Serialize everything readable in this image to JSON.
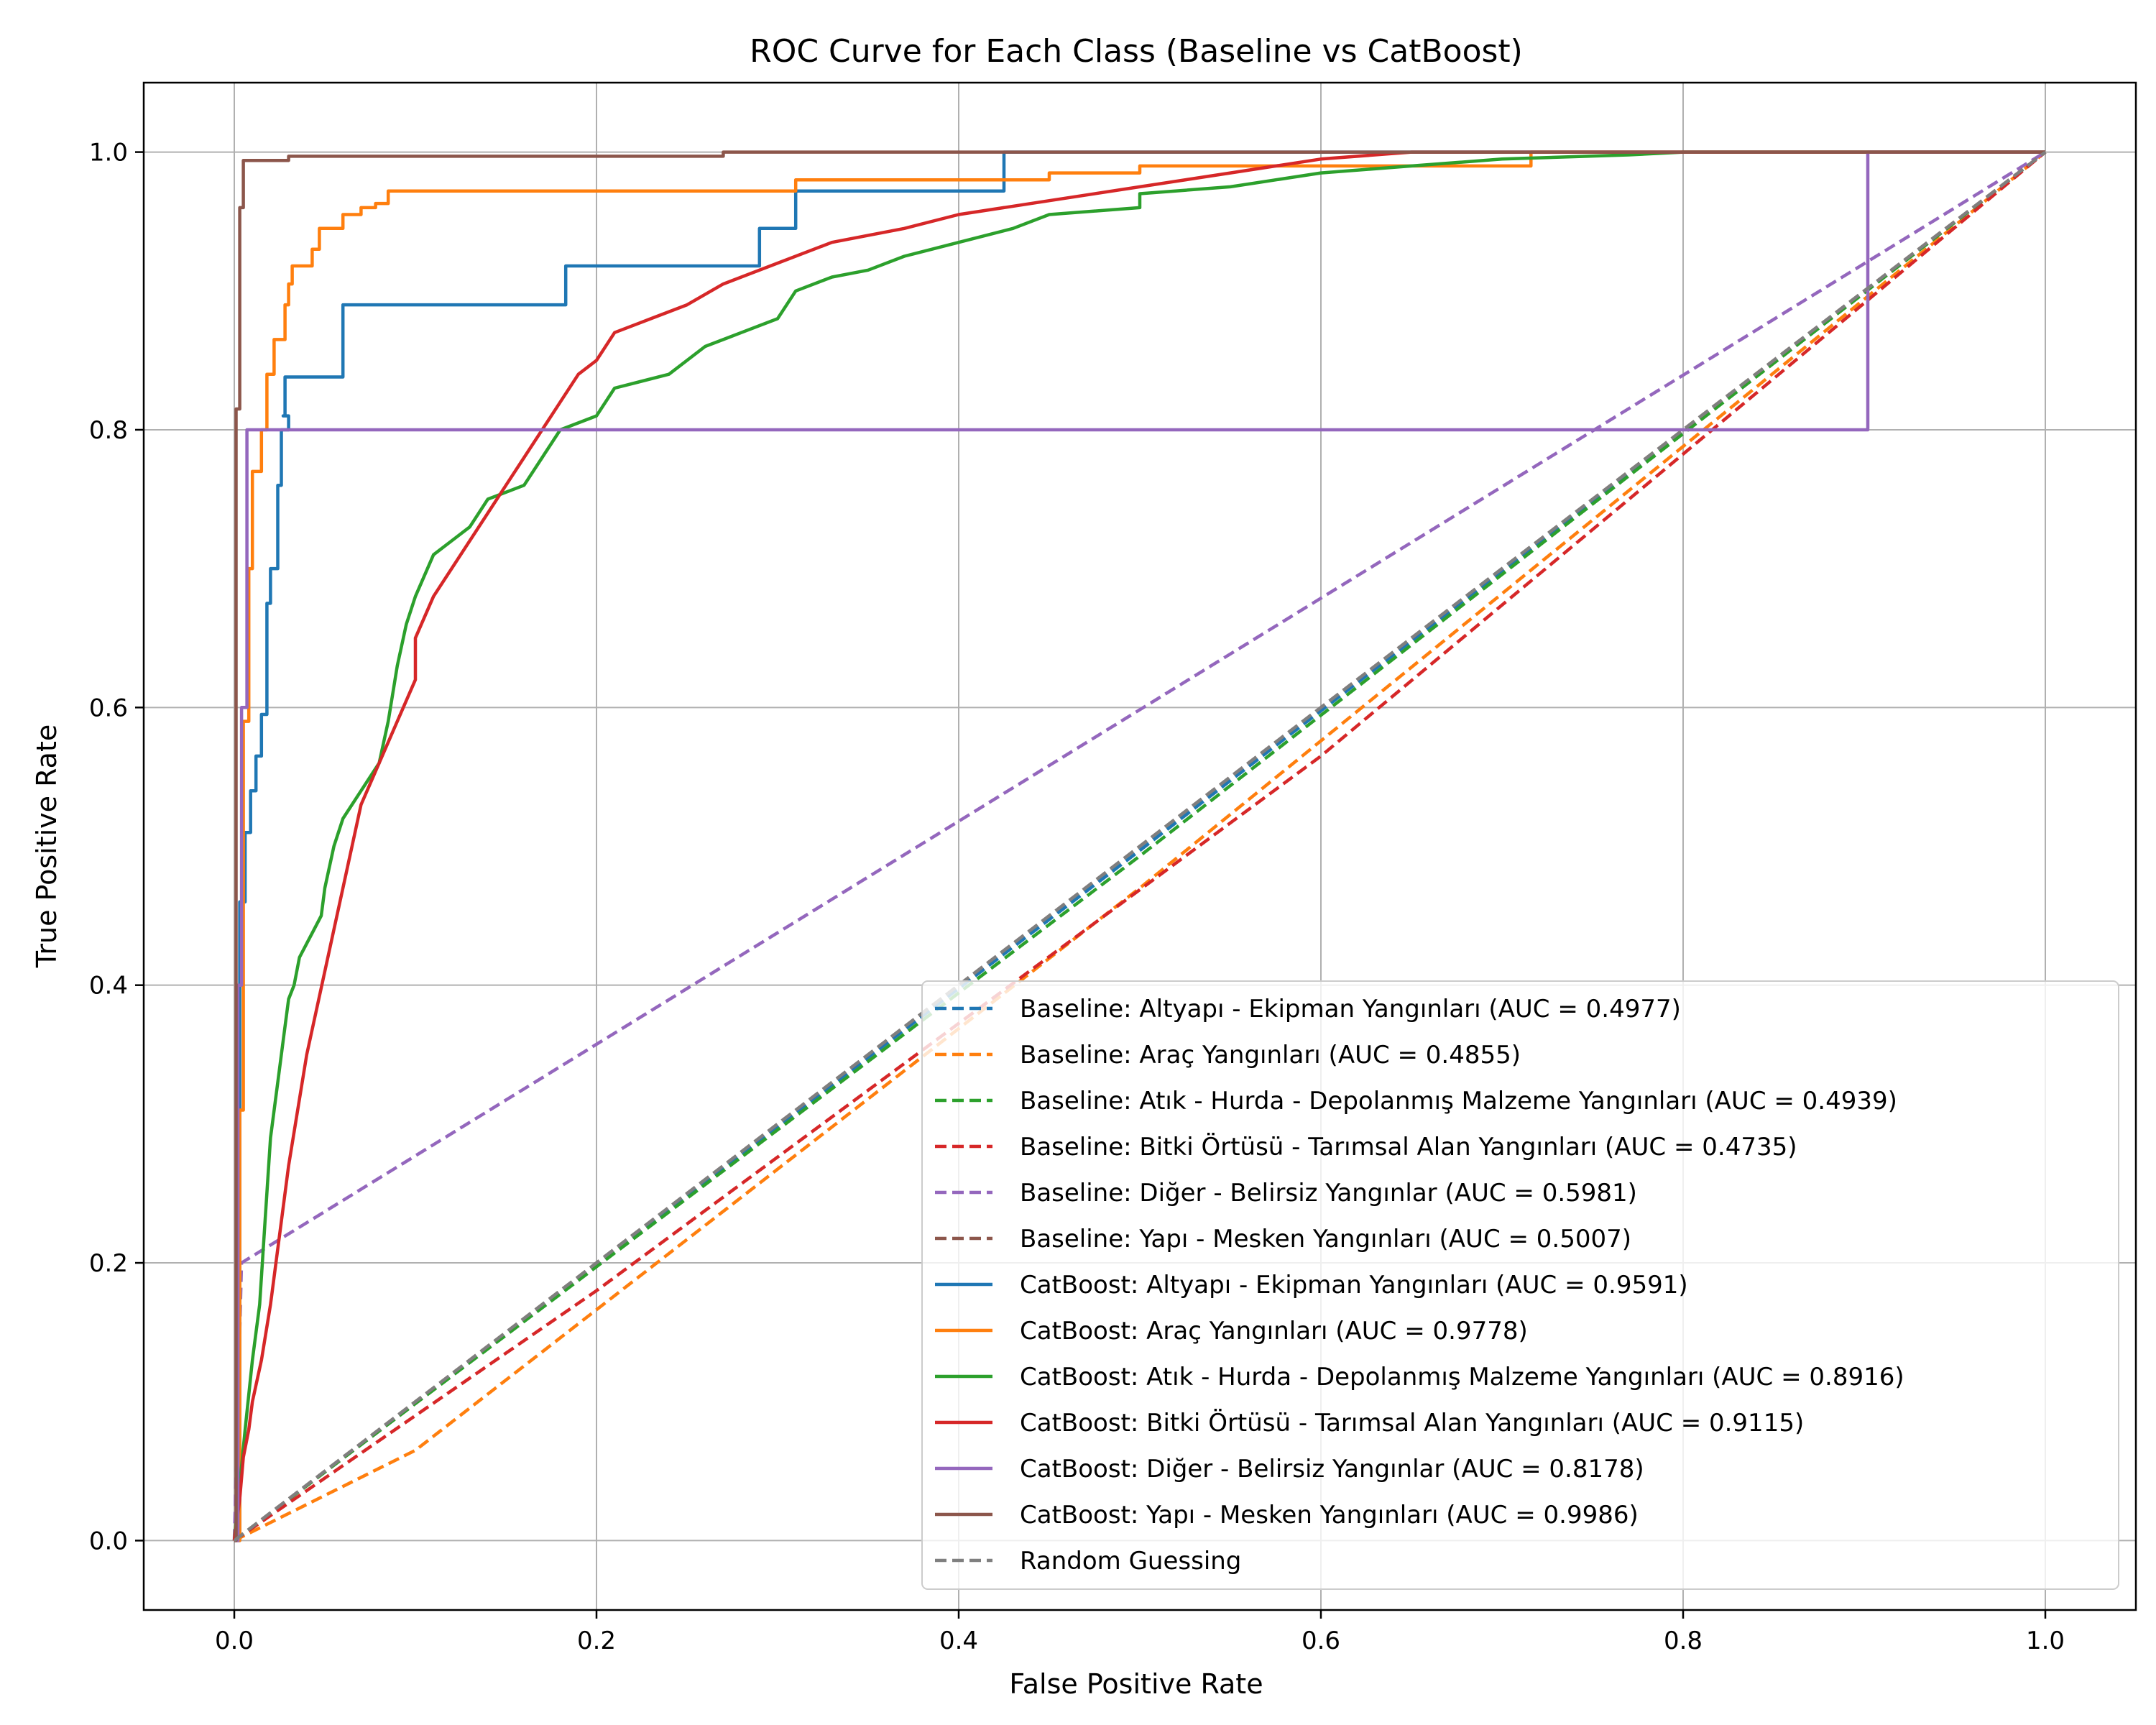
{
  "chart_data": {
    "type": "line",
    "title": "ROC Curve for Each Class (Baseline vs CatBoost)",
    "xlabel": "False Positive Rate",
    "ylabel": "True Positive Rate",
    "xlim": [
      -0.05,
      1.05
    ],
    "ylim": [
      -0.05,
      1.05
    ],
    "xticks": [
      "0.0",
      "0.2",
      "0.4",
      "0.6",
      "0.8",
      "1.0"
    ],
    "yticks": [
      "0.0",
      "0.2",
      "0.4",
      "0.6",
      "0.8",
      "1.0"
    ],
    "grid": true,
    "legend_position": "lower-right",
    "series": [
      {
        "name": "Baseline: Altyapı - Ekipman Yangınları (AUC = 0.4977)",
        "color": "#1f77b4",
        "style": "dashed",
        "points": [
          [
            0,
            0
          ],
          [
            0.5,
            0.497
          ],
          [
            1,
            1
          ]
        ]
      },
      {
        "name": "Baseline: Araç Yangınları (AUC = 0.4855)",
        "color": "#ff7f0e",
        "style": "dashed",
        "points": [
          [
            0,
            0
          ],
          [
            0.1,
            0.065
          ],
          [
            0.5,
            0.47
          ],
          [
            1,
            1
          ]
        ]
      },
      {
        "name": "Baseline: Atık - Hurda - Depolanmış Malzeme Yangınları (AUC = 0.4939)",
        "color": "#2ca02c",
        "style": "dashed",
        "points": [
          [
            0,
            0
          ],
          [
            0.5,
            0.493
          ],
          [
            1,
            1
          ]
        ]
      },
      {
        "name": "Baseline: Bitki Örtüsü - Tarımsal Alan Yangınları (AUC = 0.4735)",
        "color": "#d62728",
        "style": "dashed",
        "points": [
          [
            0,
            0
          ],
          [
            0.2,
            0.18
          ],
          [
            0.6,
            0.565
          ],
          [
            1,
            1
          ]
        ]
      },
      {
        "name": "Baseline: Diğer - Belirsiz Yangınlar (AUC = 0.5981)",
        "color": "#9467bd",
        "style": "dashed",
        "points": [
          [
            0,
            0
          ],
          [
            0.004,
            0.2
          ],
          [
            1,
            1
          ]
        ]
      },
      {
        "name": "Baseline: Yapı - Mesken Yangınları (AUC = 0.5007)",
        "color": "#8c564b",
        "style": "dashed",
        "points": [
          [
            0,
            0
          ],
          [
            1,
            1
          ]
        ]
      },
      {
        "name": "CatBoost: Altyapı - Ekipman Yangınları (AUC = 0.9591)",
        "color": "#1f77b4",
        "style": "solid",
        "points": [
          [
            0,
            0
          ],
          [
            0.003,
            0
          ],
          [
            0.003,
            0.46
          ],
          [
            0.006,
            0.46
          ],
          [
            0.006,
            0.51
          ],
          [
            0.009,
            0.51
          ],
          [
            0.009,
            0.54
          ],
          [
            0.012,
            0.54
          ],
          [
            0.012,
            0.565
          ],
          [
            0.015,
            0.565
          ],
          [
            0.015,
            0.595
          ],
          [
            0.018,
            0.595
          ],
          [
            0.018,
            0.675
          ],
          [
            0.02,
            0.675
          ],
          [
            0.02,
            0.7
          ],
          [
            0.024,
            0.7
          ],
          [
            0.024,
            0.76
          ],
          [
            0.026,
            0.76
          ],
          [
            0.026,
            0.8
          ],
          [
            0.03,
            0.8
          ],
          [
            0.03,
            0.81
          ],
          [
            0.027,
            0.81
          ],
          [
            0.027,
            0.81
          ],
          [
            0.028,
            0.81
          ],
          [
            0.028,
            0.838
          ],
          [
            0.06,
            0.838
          ],
          [
            0.06,
            0.89
          ],
          [
            0.183,
            0.89
          ],
          [
            0.183,
            0.918
          ],
          [
            0.29,
            0.918
          ],
          [
            0.29,
            0.945
          ],
          [
            0.31,
            0.945
          ],
          [
            0.31,
            0.972
          ],
          [
            0.425,
            0.972
          ],
          [
            0.425,
            1.0
          ],
          [
            1,
            1
          ]
        ]
      },
      {
        "name": "CatBoost: Araç Yangınları (AUC = 0.9778)",
        "color": "#ff7f0e",
        "style": "solid",
        "points": [
          [
            0,
            0
          ],
          [
            0.003,
            0
          ],
          [
            0.003,
            0.31
          ],
          [
            0.005,
            0.31
          ],
          [
            0.005,
            0.59
          ],
          [
            0.008,
            0.59
          ],
          [
            0.008,
            0.7
          ],
          [
            0.01,
            0.7
          ],
          [
            0.01,
            0.77
          ],
          [
            0.015,
            0.77
          ],
          [
            0.015,
            0.8
          ],
          [
            0.018,
            0.8
          ],
          [
            0.018,
            0.84
          ],
          [
            0.022,
            0.84
          ],
          [
            0.022,
            0.865
          ],
          [
            0.028,
            0.865
          ],
          [
            0.028,
            0.89
          ],
          [
            0.03,
            0.89
          ],
          [
            0.03,
            0.905
          ],
          [
            0.032,
            0.905
          ],
          [
            0.032,
            0.918
          ],
          [
            0.043,
            0.918
          ],
          [
            0.043,
            0.93
          ],
          [
            0.047,
            0.93
          ],
          [
            0.047,
            0.945
          ],
          [
            0.06,
            0.945
          ],
          [
            0.06,
            0.955
          ],
          [
            0.07,
            0.955
          ],
          [
            0.07,
            0.96
          ],
          [
            0.078,
            0.96
          ],
          [
            0.078,
            0.963
          ],
          [
            0.085,
            0.963
          ],
          [
            0.085,
            0.972
          ],
          [
            0.31,
            0.972
          ],
          [
            0.31,
            0.98
          ],
          [
            0.45,
            0.98
          ],
          [
            0.45,
            0.985
          ],
          [
            0.5,
            0.985
          ],
          [
            0.5,
            0.99
          ],
          [
            0.716,
            0.99
          ],
          [
            0.716,
            1.0
          ],
          [
            1,
            1
          ]
        ]
      },
      {
        "name": "CatBoost: Atık - Hurda - Depolanmış Malzeme Yangınları (AUC = 0.8916)",
        "color": "#2ca02c",
        "style": "solid",
        "points": [
          [
            0,
            0
          ],
          [
            0.003,
            0.04
          ],
          [
            0.006,
            0.08
          ],
          [
            0.01,
            0.13
          ],
          [
            0.014,
            0.17
          ],
          [
            0.017,
            0.23
          ],
          [
            0.02,
            0.29
          ],
          [
            0.024,
            0.33
          ],
          [
            0.027,
            0.36
          ],
          [
            0.03,
            0.39
          ],
          [
            0.033,
            0.4
          ],
          [
            0.036,
            0.42
          ],
          [
            0.04,
            0.43
          ],
          [
            0.044,
            0.44
          ],
          [
            0.048,
            0.45
          ],
          [
            0.05,
            0.47
          ],
          [
            0.055,
            0.5
          ],
          [
            0.06,
            0.52
          ],
          [
            0.07,
            0.54
          ],
          [
            0.08,
            0.56
          ],
          [
            0.085,
            0.59
          ],
          [
            0.09,
            0.63
          ],
          [
            0.095,
            0.66
          ],
          [
            0.1,
            0.68
          ],
          [
            0.11,
            0.71
          ],
          [
            0.12,
            0.72
          ],
          [
            0.13,
            0.73
          ],
          [
            0.14,
            0.75
          ],
          [
            0.16,
            0.76
          ],
          [
            0.17,
            0.78
          ],
          [
            0.18,
            0.8
          ],
          [
            0.2,
            0.81
          ],
          [
            0.21,
            0.83
          ],
          [
            0.24,
            0.84
          ],
          [
            0.26,
            0.86
          ],
          [
            0.28,
            0.87
          ],
          [
            0.3,
            0.88
          ],
          [
            0.31,
            0.9
          ],
          [
            0.33,
            0.91
          ],
          [
            0.35,
            0.915
          ],
          [
            0.37,
            0.925
          ],
          [
            0.4,
            0.935
          ],
          [
            0.43,
            0.945
          ],
          [
            0.45,
            0.955
          ],
          [
            0.5,
            0.96
          ],
          [
            0.5,
            0.97
          ],
          [
            0.55,
            0.975
          ],
          [
            0.6,
            0.985
          ],
          [
            0.65,
            0.99
          ],
          [
            0.7,
            0.995
          ],
          [
            0.77,
            0.998
          ],
          [
            0.8,
            1.0
          ],
          [
            1,
            1
          ]
        ]
      },
      {
        "name": "CatBoost: Bitki Örtüsü - Tarımsal Alan Yangınları (AUC = 0.9115)",
        "color": "#d62728",
        "style": "solid",
        "points": [
          [
            0,
            0
          ],
          [
            0.003,
            0.03
          ],
          [
            0.005,
            0.06
          ],
          [
            0.008,
            0.08
          ],
          [
            0.01,
            0.1
          ],
          [
            0.015,
            0.13
          ],
          [
            0.02,
            0.17
          ],
          [
            0.025,
            0.22
          ],
          [
            0.03,
            0.27
          ],
          [
            0.035,
            0.31
          ],
          [
            0.04,
            0.35
          ],
          [
            0.045,
            0.38
          ],
          [
            0.05,
            0.41
          ],
          [
            0.055,
            0.44
          ],
          [
            0.06,
            0.47
          ],
          [
            0.065,
            0.5
          ],
          [
            0.07,
            0.53
          ],
          [
            0.08,
            0.56
          ],
          [
            0.09,
            0.59
          ],
          [
            0.1,
            0.62
          ],
          [
            0.1,
            0.65
          ],
          [
            0.11,
            0.68
          ],
          [
            0.12,
            0.7
          ],
          [
            0.13,
            0.72
          ],
          [
            0.14,
            0.74
          ],
          [
            0.15,
            0.76
          ],
          [
            0.16,
            0.78
          ],
          [
            0.17,
            0.8
          ],
          [
            0.18,
            0.82
          ],
          [
            0.19,
            0.84
          ],
          [
            0.2,
            0.85
          ],
          [
            0.21,
            0.87
          ],
          [
            0.23,
            0.88
          ],
          [
            0.25,
            0.89
          ],
          [
            0.27,
            0.905
          ],
          [
            0.3,
            0.92
          ],
          [
            0.33,
            0.935
          ],
          [
            0.37,
            0.945
          ],
          [
            0.4,
            0.955
          ],
          [
            0.45,
            0.965
          ],
          [
            0.5,
            0.975
          ],
          [
            0.55,
            0.985
          ],
          [
            0.6,
            0.995
          ],
          [
            0.65,
            1.0
          ],
          [
            1,
            1
          ]
        ]
      },
      {
        "name": "CatBoost: Diğer - Belirsiz Yangınlar (AUC = 0.8178)",
        "color": "#9467bd",
        "style": "solid",
        "points": [
          [
            0,
            0
          ],
          [
            0.002,
            0
          ],
          [
            0.002,
            0.4
          ],
          [
            0.004,
            0.4
          ],
          [
            0.004,
            0.6
          ],
          [
            0.007,
            0.6
          ],
          [
            0.007,
            0.8
          ],
          [
            0.902,
            0.8
          ],
          [
            0.902,
            1.0
          ],
          [
            1,
            1
          ]
        ]
      },
      {
        "name": "CatBoost: Yapı - Mesken Yangınları (AUC = 0.9986)",
        "color": "#8c564b",
        "style": "solid",
        "points": [
          [
            0,
            0
          ],
          [
            0.001,
            0
          ],
          [
            0.001,
            0.815
          ],
          [
            0.003,
            0.815
          ],
          [
            0.003,
            0.96
          ],
          [
            0.005,
            0.96
          ],
          [
            0.005,
            0.994
          ],
          [
            0.03,
            0.994
          ],
          [
            0.03,
            0.997
          ],
          [
            0.27,
            0.997
          ],
          [
            0.27,
            1.0
          ],
          [
            1,
            1
          ]
        ]
      },
      {
        "name": "Random Guessing",
        "color": "#7f7f7f",
        "style": "dashed",
        "points": [
          [
            0,
            0
          ],
          [
            1,
            1
          ]
        ]
      }
    ]
  }
}
